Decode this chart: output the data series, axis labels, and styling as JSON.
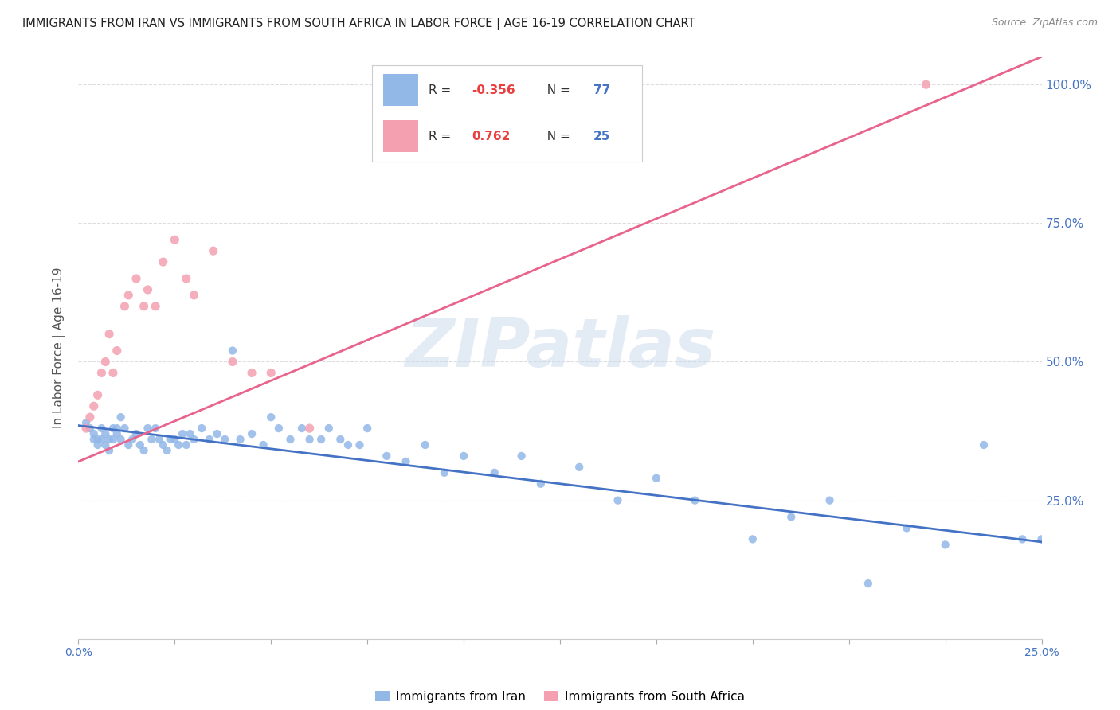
{
  "title": "IMMIGRANTS FROM IRAN VS IMMIGRANTS FROM SOUTH AFRICA IN LABOR FORCE | AGE 16-19 CORRELATION CHART",
  "source": "Source: ZipAtlas.com",
  "ylabel": "In Labor Force | Age 16-19",
  "xmin": 0.0,
  "xmax": 0.25,
  "ymin": 0.0,
  "ymax": 1.05,
  "iran_r": -0.356,
  "iran_n": 77,
  "sa_r": 0.762,
  "sa_n": 25,
  "iran_color": "#92b8e8",
  "sa_color": "#f4a0b0",
  "iran_line_color": "#4472c4",
  "sa_line_color": "#e8648c",
  "legend_label_iran": "Immigrants from Iran",
  "legend_label_sa": "Immigrants from South Africa",
  "iran_scatter_x": [
    0.002,
    0.003,
    0.004,
    0.004,
    0.005,
    0.005,
    0.006,
    0.006,
    0.007,
    0.007,
    0.008,
    0.008,
    0.009,
    0.009,
    0.01,
    0.01,
    0.011,
    0.011,
    0.012,
    0.013,
    0.014,
    0.015,
    0.016,
    0.017,
    0.018,
    0.019,
    0.02,
    0.021,
    0.022,
    0.023,
    0.024,
    0.025,
    0.026,
    0.027,
    0.028,
    0.029,
    0.03,
    0.032,
    0.034,
    0.036,
    0.038,
    0.04,
    0.042,
    0.045,
    0.048,
    0.05,
    0.052,
    0.055,
    0.058,
    0.06,
    0.063,
    0.065,
    0.068,
    0.07,
    0.073,
    0.075,
    0.08,
    0.085,
    0.09,
    0.095,
    0.1,
    0.108,
    0.115,
    0.12,
    0.13,
    0.14,
    0.15,
    0.16,
    0.175,
    0.185,
    0.195,
    0.205,
    0.215,
    0.225,
    0.235,
    0.245,
    0.25
  ],
  "iran_scatter_y": [
    0.39,
    0.38,
    0.37,
    0.36,
    0.36,
    0.35,
    0.38,
    0.36,
    0.37,
    0.35,
    0.36,
    0.34,
    0.38,
    0.36,
    0.38,
    0.37,
    0.4,
    0.36,
    0.38,
    0.35,
    0.36,
    0.37,
    0.35,
    0.34,
    0.38,
    0.36,
    0.38,
    0.36,
    0.35,
    0.34,
    0.36,
    0.36,
    0.35,
    0.37,
    0.35,
    0.37,
    0.36,
    0.38,
    0.36,
    0.37,
    0.36,
    0.52,
    0.36,
    0.37,
    0.35,
    0.4,
    0.38,
    0.36,
    0.38,
    0.36,
    0.36,
    0.38,
    0.36,
    0.35,
    0.35,
    0.38,
    0.33,
    0.32,
    0.35,
    0.3,
    0.33,
    0.3,
    0.33,
    0.28,
    0.31,
    0.25,
    0.29,
    0.25,
    0.18,
    0.22,
    0.25,
    0.1,
    0.2,
    0.17,
    0.35,
    0.18,
    0.18
  ],
  "sa_scatter_x": [
    0.002,
    0.003,
    0.004,
    0.005,
    0.006,
    0.007,
    0.008,
    0.009,
    0.01,
    0.012,
    0.013,
    0.015,
    0.017,
    0.018,
    0.02,
    0.022,
    0.025,
    0.028,
    0.03,
    0.035,
    0.04,
    0.045,
    0.05,
    0.06,
    0.22
  ],
  "sa_scatter_y": [
    0.38,
    0.4,
    0.42,
    0.44,
    0.48,
    0.5,
    0.55,
    0.48,
    0.52,
    0.6,
    0.62,
    0.65,
    0.6,
    0.63,
    0.6,
    0.68,
    0.72,
    0.65,
    0.62,
    0.7,
    0.5,
    0.48,
    0.48,
    0.38,
    1.0
  ],
  "iran_trendline_x": [
    0.0,
    0.25
  ],
  "iran_trendline_y": [
    0.385,
    0.175
  ],
  "sa_trendline_x": [
    0.0,
    0.25
  ],
  "sa_trendline_y": [
    0.32,
    1.05
  ],
  "yticks_right": [
    0.0,
    0.25,
    0.5,
    0.75,
    1.0
  ],
  "ytick_labels_right": [
    "",
    "25.0%",
    "50.0%",
    "75.0%",
    "100.0%"
  ],
  "xticks": [
    0.0,
    0.025,
    0.05,
    0.075,
    0.1,
    0.125,
    0.15,
    0.175,
    0.2,
    0.225,
    0.25
  ],
  "xtick_labels_show": {
    "0.0": "0.0%",
    "0.25": "25.0%"
  },
  "background_color": "#ffffff",
  "grid_color": "#dddddd",
  "watermark_text": "ZIPatlas",
  "r_color": "#e84040",
  "n_color": "#4472c4"
}
